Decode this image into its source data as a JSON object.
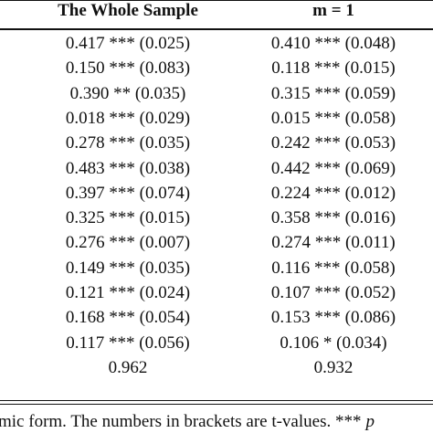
{
  "table": {
    "header": [
      "The Whole Sample",
      "m = 1"
    ],
    "rows": [
      [
        "0.417 *** (0.025)",
        "0.410 *** (0.048)"
      ],
      [
        "0.150 *** (0.083)",
        "0.118 *** (0.015)"
      ],
      [
        "0.390 ** (0.035)",
        "0.315 *** (0.059)"
      ],
      [
        "0.018 *** (0.029)",
        "0.015 *** (0.058)"
      ],
      [
        "0.278 *** (0.035)",
        "0.242 *** (0.053)"
      ],
      [
        "0.483 *** (0.038)",
        "0.442 *** (0.069)"
      ],
      [
        "0.397 *** (0.074)",
        "0.224 *** (0.012)"
      ],
      [
        "0.325 *** (0.015)",
        "0.358 *** (0.016)"
      ],
      [
        "0.276 *** (0.007)",
        "0.274 *** (0.011)"
      ],
      [
        "0.149 *** (0.035)",
        "0.116 *** (0.058)"
      ],
      [
        "0.121 *** (0.024)",
        "0.107 *** (0.052)"
      ],
      [
        "0.168 *** (0.054)",
        "0.153 *** (0.086)"
      ],
      [
        "0.117 *** (0.056)",
        "0.106 * (0.034)"
      ],
      [
        "0.962",
        "0.932"
      ]
    ],
    "note": {
      "text": "mic form. The numbers in brackets are t-values. ***",
      "italic": "p"
    }
  }
}
